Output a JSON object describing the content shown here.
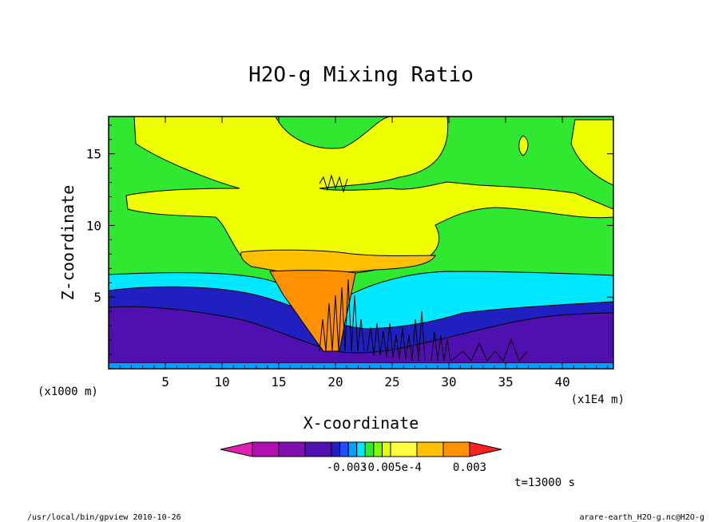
{
  "chart_data": {
    "type": "heatmap",
    "title": "H2O-g Mixing Ratio",
    "xlabel": "X-coordinate",
    "ylabel": "Z-coordinate",
    "x_unit_left": "(x1000 m)",
    "x_unit_right": "(x1E4 m)",
    "xlim": [
      0,
      44.5
    ],
    "ylim": [
      0,
      17.6
    ],
    "x_ticks": [
      "5",
      "10",
      "15",
      "20",
      "25",
      "30",
      "35",
      "40"
    ],
    "y_ticks": [
      "5",
      "10",
      "15"
    ],
    "time_label": "t=13000 s",
    "colorbar": {
      "colors": [
        "#e020b0",
        "#b010b0",
        "#8010b0",
        "#5010b0",
        "#2020c0",
        "#2050ff",
        "#00a0ff",
        "#00e8ff",
        "#30e830",
        "#80ff00",
        "#e0ff00",
        "#ffff40",
        "#ffc000",
        "#ff9000",
        "#ff2020"
      ],
      "tick_labels": [
        "-0.003",
        "-0.005e-4",
        "0.003"
      ]
    },
    "regions": [
      {
        "name": "bottom-purple",
        "color": "#5010b0"
      },
      {
        "name": "blue-layer",
        "color": "#2020c0"
      },
      {
        "name": "cyan-layer",
        "color": "#00e8ff"
      },
      {
        "name": "green-layer",
        "color": "#30e830"
      },
      {
        "name": "yellow-layer",
        "color": "#f0ff00"
      },
      {
        "name": "orange-anvil",
        "color": "#ffc000"
      },
      {
        "name": "updraft-core",
        "color": "#ff9000"
      }
    ]
  },
  "footer": {
    "left": "/usr/local/bin/gpview  2010-10-26",
    "right": "arare-earth_H2O-g.nc@H2O-g"
  }
}
